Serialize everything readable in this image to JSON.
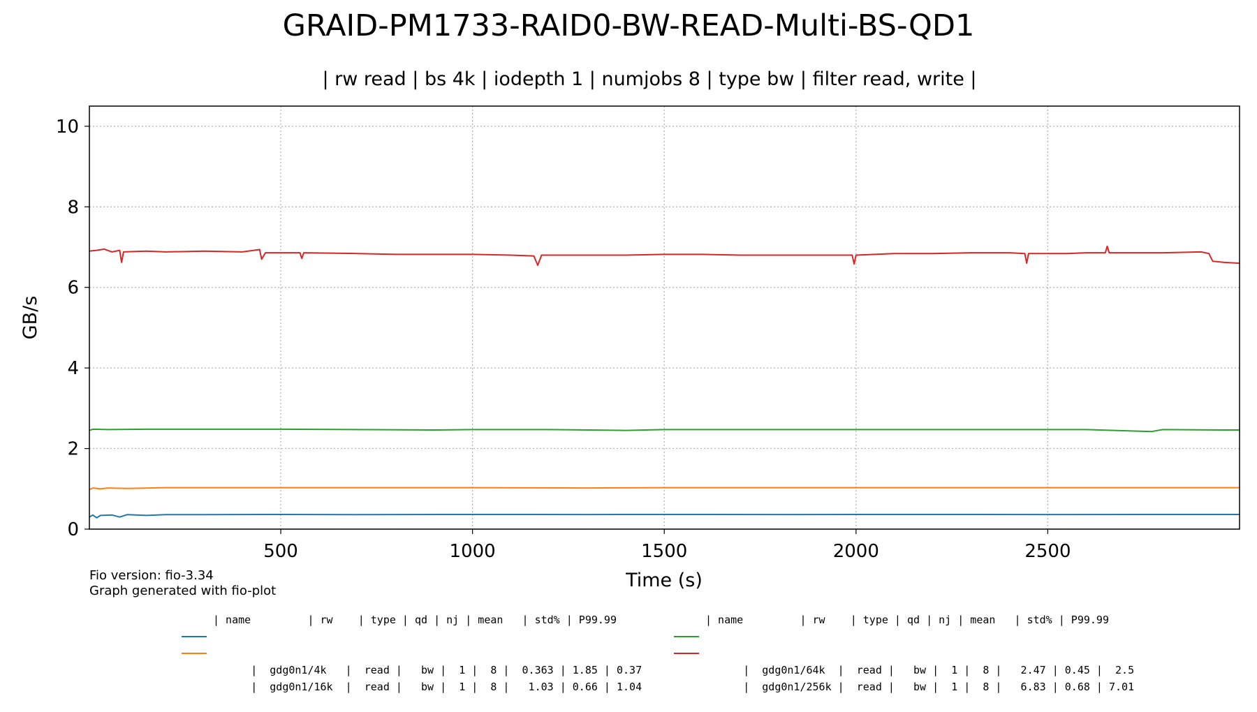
{
  "chart_data": {
    "type": "line",
    "title": "GRAID-PM1733-RAID0-BW-READ-Multi-BS-QD1",
    "subtitle": "| rw read | bs 4k | iodepth 1 | numjobs 8 | type bw | filter read, write |",
    "xlabel": "Time (s)",
    "ylabel": "GB/s",
    "xlim": [
      1,
      3000
    ],
    "ylim": [
      0,
      10.5
    ],
    "xticks": [
      500,
      1000,
      1500,
      2000,
      2500
    ],
    "yticks": [
      0,
      2,
      4,
      6,
      8,
      10
    ],
    "grid": true,
    "series": [
      {
        "name": "gdg0n1/4k",
        "color": "#1f77b4",
        "points": [
          [
            1,
            0.3
          ],
          [
            10,
            0.35
          ],
          [
            20,
            0.28
          ],
          [
            30,
            0.34
          ],
          [
            60,
            0.35
          ],
          [
            80,
            0.3
          ],
          [
            100,
            0.36
          ],
          [
            150,
            0.34
          ],
          [
            200,
            0.36
          ],
          [
            300,
            0.36
          ],
          [
            500,
            0.363
          ],
          [
            700,
            0.36
          ],
          [
            1000,
            0.363
          ],
          [
            1300,
            0.362
          ],
          [
            1500,
            0.363
          ],
          [
            1800,
            0.362
          ],
          [
            2000,
            0.363
          ],
          [
            2300,
            0.363
          ],
          [
            2500,
            0.362
          ],
          [
            2800,
            0.363
          ],
          [
            3000,
            0.363
          ]
        ]
      },
      {
        "name": "gdg0n1/16k",
        "color": "#ff7f0e",
        "points": [
          [
            1,
            0.98
          ],
          [
            10,
            1.02
          ],
          [
            30,
            1.0
          ],
          [
            50,
            1.02
          ],
          [
            100,
            1.01
          ],
          [
            200,
            1.03
          ],
          [
            400,
            1.03
          ],
          [
            600,
            1.03
          ],
          [
            800,
            1.03
          ],
          [
            1000,
            1.03
          ],
          [
            1300,
            1.02
          ],
          [
            1500,
            1.03
          ],
          [
            1800,
            1.03
          ],
          [
            2000,
            1.03
          ],
          [
            2300,
            1.03
          ],
          [
            2500,
            1.03
          ],
          [
            2800,
            1.03
          ],
          [
            3000,
            1.03
          ]
        ]
      },
      {
        "name": "gdg0n1/64k",
        "color": "#2ca02c",
        "points": [
          [
            1,
            2.45
          ],
          [
            10,
            2.48
          ],
          [
            50,
            2.47
          ],
          [
            150,
            2.48
          ],
          [
            300,
            2.48
          ],
          [
            500,
            2.48
          ],
          [
            700,
            2.47
          ],
          [
            900,
            2.46
          ],
          [
            1000,
            2.47
          ],
          [
            1200,
            2.47
          ],
          [
            1400,
            2.45
          ],
          [
            1500,
            2.47
          ],
          [
            1800,
            2.47
          ],
          [
            2000,
            2.47
          ],
          [
            2200,
            2.47
          ],
          [
            2400,
            2.47
          ],
          [
            2600,
            2.47
          ],
          [
            2770,
            2.42
          ],
          [
            2800,
            2.47
          ],
          [
            2950,
            2.46
          ],
          [
            3000,
            2.46
          ]
        ]
      },
      {
        "name": "gdg0n1/256k",
        "color": "#d62728",
        "points": [
          [
            1,
            6.9
          ],
          [
            20,
            6.92
          ],
          [
            40,
            6.95
          ],
          [
            60,
            6.88
          ],
          [
            80,
            6.92
          ],
          [
            85,
            6.62
          ],
          [
            90,
            6.88
          ],
          [
            150,
            6.9
          ],
          [
            200,
            6.88
          ],
          [
            300,
            6.9
          ],
          [
            400,
            6.88
          ],
          [
            445,
            6.94
          ],
          [
            450,
            6.7
          ],
          [
            460,
            6.86
          ],
          [
            550,
            6.86
          ],
          [
            555,
            6.72
          ],
          [
            560,
            6.86
          ],
          [
            700,
            6.84
          ],
          [
            800,
            6.82
          ],
          [
            900,
            6.82
          ],
          [
            1000,
            6.82
          ],
          [
            1100,
            6.8
          ],
          [
            1160,
            6.78
          ],
          [
            1170,
            6.55
          ],
          [
            1180,
            6.8
          ],
          [
            1200,
            6.8
          ],
          [
            1300,
            6.8
          ],
          [
            1400,
            6.8
          ],
          [
            1500,
            6.82
          ],
          [
            1600,
            6.82
          ],
          [
            1700,
            6.8
          ],
          [
            1800,
            6.8
          ],
          [
            1900,
            6.8
          ],
          [
            1990,
            6.8
          ],
          [
            1995,
            6.58
          ],
          [
            2000,
            6.8
          ],
          [
            2050,
            6.82
          ],
          [
            2100,
            6.84
          ],
          [
            2200,
            6.84
          ],
          [
            2300,
            6.86
          ],
          [
            2400,
            6.86
          ],
          [
            2440,
            6.84
          ],
          [
            2445,
            6.6
          ],
          [
            2450,
            6.84
          ],
          [
            2550,
            6.84
          ],
          [
            2600,
            6.86
          ],
          [
            2650,
            6.86
          ],
          [
            2655,
            7.02
          ],
          [
            2660,
            6.86
          ],
          [
            2800,
            6.86
          ],
          [
            2900,
            6.88
          ],
          [
            2920,
            6.84
          ],
          [
            2930,
            6.65
          ],
          [
            2960,
            6.62
          ],
          [
            3000,
            6.6
          ]
        ]
      }
    ]
  },
  "footnote": {
    "line1": "Fio version: fio-3.34",
    "line2": "Graph generated with fio-plot"
  },
  "legend_table": {
    "header": "| name         | rw    | type | qd | nj | mean   | std% | P99.99",
    "rows": [
      {
        "color": "#1f77b4",
        "text": "|  gdg0n1/4k   |  read |   bw |  1 |  8 |  0.363 | 1.85 | 0.37"
      },
      {
        "color": "#ff7f0e",
        "text": "|  gdg0n1/16k  |  read |   bw |  1 |  8 |   1.03 | 0.66 | 1.04"
      },
      {
        "color": "#2ca02c",
        "text": "|  gdg0n1/64k  |  read |   bw |  1 |  8 |   2.47 | 0.45 |  2.5"
      },
      {
        "color": "#d62728",
        "text": "|  gdg0n1/256k |  read |   bw |  1 |  8 |   6.83 | 0.68 | 7.01"
      }
    ]
  }
}
